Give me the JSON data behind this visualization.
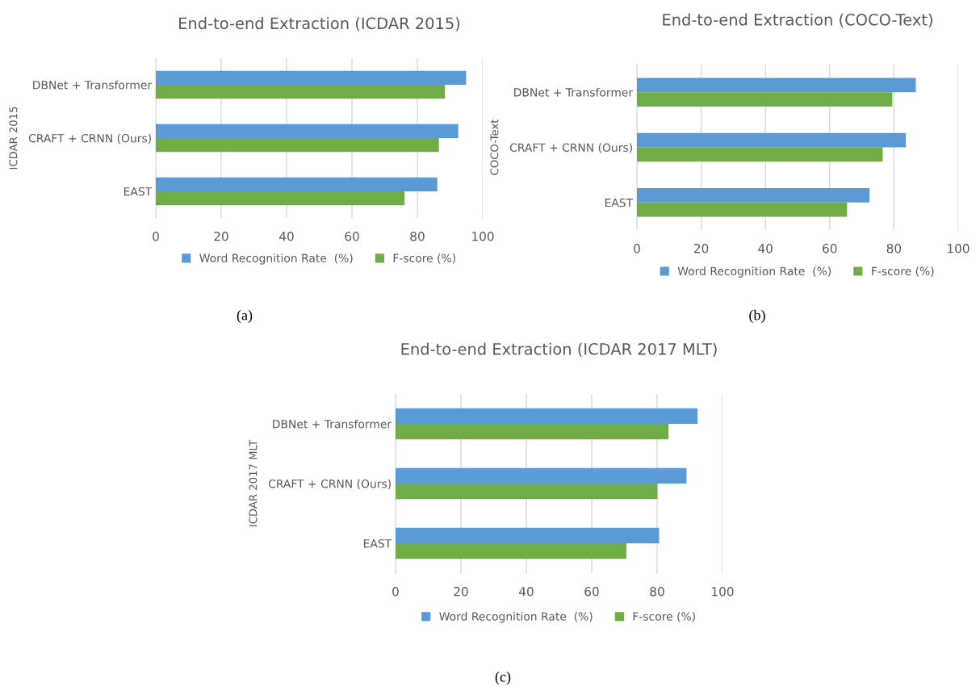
{
  "chart_data": [
    {
      "type": "bar",
      "orientation": "horizontal",
      "title": "End-to-end Extraction (ICDAR 2015)",
      "ylabel": "ICDAR 2015",
      "categories": [
        "DBNet + Transformer",
        "CRAFT + CRNN (Ours)",
        "EAST"
      ],
      "series": [
        {
          "name": "Word Recognition Rate  (%)",
          "color": "#5b9bd5",
          "values": [
            94.9,
            92.5,
            86.1
          ]
        },
        {
          "name": "F-score (%)",
          "color": "#70ad47",
          "values": [
            88.4,
            86.6,
            76.1
          ]
        }
      ],
      "xlim": [
        0,
        100
      ],
      "xticks": [
        0,
        20,
        40,
        60,
        80,
        100
      ],
      "grid": "x",
      "legend": "bottom",
      "annotations": [
        "(a)"
      ]
    },
    {
      "type": "bar",
      "orientation": "horizontal",
      "title": "End-to-end Extraction (COCO-Text)",
      "ylabel": "COCO-Text",
      "categories": [
        "DBNet + Transformer",
        "CRAFT + CRNN (Ours)",
        "EAST"
      ],
      "series": [
        {
          "name": "Word Recognition Rate  (%)",
          "color": "#5b9bd5",
          "values": [
            86.8,
            83.7,
            72.4
          ]
        },
        {
          "name": "F-score (%)",
          "color": "#70ad47",
          "values": [
            79.5,
            76.5,
            65.4
          ]
        }
      ],
      "xlim": [
        0,
        100
      ],
      "xticks": [
        0,
        20,
        40,
        60,
        80,
        100
      ],
      "grid": "x",
      "legend": "bottom",
      "annotations": [
        "(b)"
      ]
    },
    {
      "type": "bar",
      "orientation": "horizontal",
      "title": "End-to-end Extraction (ICDAR 2017 MLT)",
      "ylabel": "ICDAR 2017 MLT",
      "categories": [
        "DBNet + Transformer",
        "CRAFT + CRNN (Ours)",
        "EAST"
      ],
      "series": [
        {
          "name": "Word Recognition Rate  (%)",
          "color": "#5b9bd5",
          "values": [
            92.4,
            89.0,
            80.6
          ]
        },
        {
          "name": "F-score (%)",
          "color": "#70ad47",
          "values": [
            83.5,
            80.1,
            70.6
          ]
        }
      ],
      "xlim": [
        0,
        100
      ],
      "xticks": [
        0,
        20,
        40,
        60,
        80,
        100
      ],
      "grid": "x",
      "legend": "bottom",
      "annotations": [
        "(c)"
      ]
    }
  ]
}
